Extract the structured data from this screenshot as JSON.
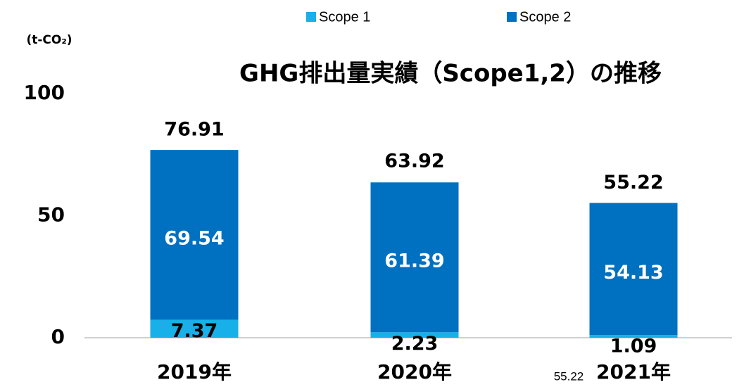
{
  "chart_data": {
    "type": "stacked_bar",
    "title": "GHG排出量実績（Scope1,2）の推移",
    "y_label": "(t-CO₂)",
    "categories": [
      "2019年",
      "2020年",
      "2021年"
    ],
    "series": [
      {
        "name": "Scope 1",
        "color": "#17b0e8",
        "values": [
          7.37,
          2.23,
          1.09
        ]
      },
      {
        "name": "Scope 2",
        "color": "#0070c0",
        "values": [
          69.54,
          61.39,
          54.13
        ]
      }
    ],
    "totals": [
      76.91,
      63.92,
      55.22
    ],
    "ylim": [
      0,
      100
    ],
    "yticks": [
      0,
      50,
      100
    ],
    "legend": "top",
    "annotation": "55.22"
  }
}
